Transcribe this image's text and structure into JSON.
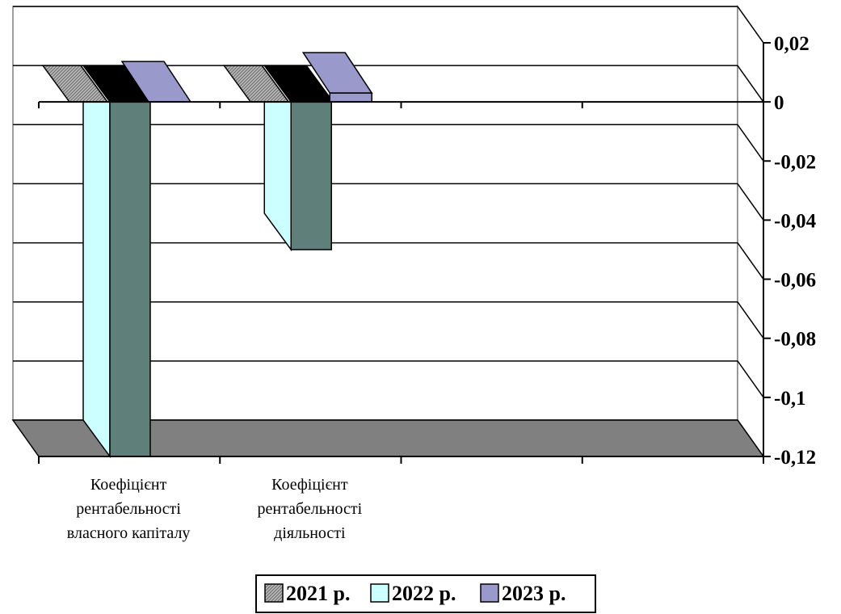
{
  "chart_data": {
    "type": "bar",
    "style": "3d-clustered-column",
    "categories": [
      [
        "Коефіцієнт",
        "рентабельності",
        "власного капіталу"
      ],
      [
        "Коефіцієнт",
        "рентабельності",
        "діяльності"
      ],
      [],
      []
    ],
    "series": [
      {
        "name": "2021 р.",
        "values": [
          0.0,
          0.0,
          null,
          null
        ],
        "color": "#a9a9a9",
        "pattern": "crosshatch"
      },
      {
        "name": "2022 р.",
        "values": [
          -0.12,
          -0.05,
          null,
          null
        ],
        "color": "#ccffff"
      },
      {
        "name": "2023 р.",
        "values": [
          0.0,
          0.003,
          null,
          null
        ],
        "color": "#9999cc"
      }
    ],
    "black_series_values": [
      0.0,
      0.0
    ],
    "back_series_color": "#000000",
    "back_series_front_color": "#5f7f7a",
    "y_axis": {
      "side": "right",
      "ticks": [
        "0,02",
        "0",
        "-0,02",
        "-0,04",
        "-0,06",
        "-0,08",
        "-0,1",
        "-0,12"
      ],
      "tick_values": [
        0.02,
        0,
        -0.02,
        -0.04,
        -0.06,
        -0.08,
        -0.1,
        -0.12
      ],
      "ylim": [
        -0.12,
        0.02
      ]
    },
    "grid": true,
    "floor_color": "#808080",
    "legend_position": "bottom"
  }
}
